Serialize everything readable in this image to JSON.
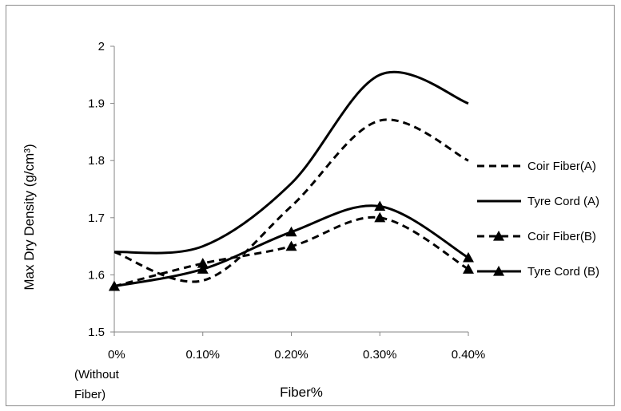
{
  "chart_data": {
    "type": "line",
    "categories": [
      "0%\n(Without\nFiber)",
      "0.10%",
      "0.20%",
      "0.30%",
      "0.40%"
    ],
    "xlabel": "Fiber%",
    "ylabel": "Max Dry Density (g/cm³)",
    "ylim": [
      1.5,
      2.0
    ],
    "yticks": [
      "1.5",
      "1.6",
      "1.7",
      "1.8",
      "1.9",
      "2"
    ],
    "grid": false,
    "legend_position": "right",
    "series": [
      {
        "name": "Coir Fiber(A)",
        "values": [
          1.64,
          1.59,
          1.72,
          1.87,
          1.8
        ],
        "style": "dashed",
        "marker": "none",
        "color": "#000000"
      },
      {
        "name": "Tyre Cord (A)",
        "values": [
          1.64,
          1.65,
          1.76,
          1.95,
          1.9
        ],
        "style": "solid",
        "marker": "none",
        "color": "#000000"
      },
      {
        "name": "Coir Fiber(B)",
        "values": [
          1.58,
          1.62,
          1.65,
          1.7,
          1.61
        ],
        "style": "dashed",
        "marker": "triangle",
        "color": "#000000"
      },
      {
        "name": "Tyre Cord (B)",
        "values": [
          1.58,
          1.61,
          1.675,
          1.72,
          1.63
        ],
        "style": "solid",
        "marker": "triangle",
        "color": "#000000"
      }
    ]
  }
}
